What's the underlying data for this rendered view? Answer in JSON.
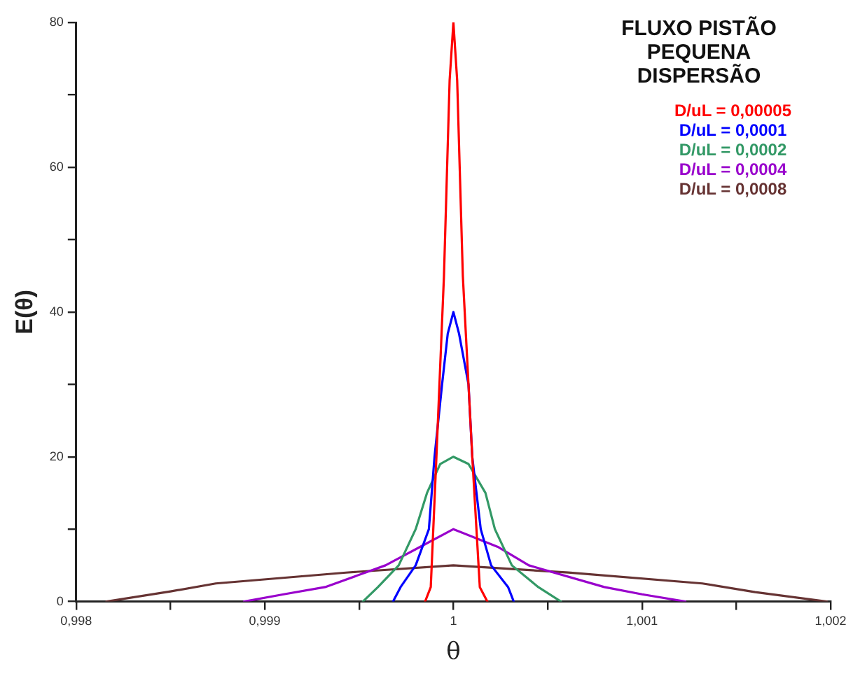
{
  "chart_data": {
    "type": "line",
    "title": "FLUXO PISTÃO PEQUENA DISPERSÃO",
    "xlabel": "θ",
    "ylabel": "E(θ)",
    "legend": "top right",
    "marker": "none",
    "line_style": "solid",
    "xlim": [
      0.998,
      1.002
    ],
    "ylim": [
      0,
      80
    ],
    "xticks": [
      {
        "value": 0.998,
        "label": "0,998"
      },
      {
        "value": 0.9985,
        "label": null
      },
      {
        "value": 0.999,
        "label": "0,999"
      },
      {
        "value": 0.9995,
        "label": null
      },
      1,
      {
        "value": 1.0005,
        "label": null
      },
      {
        "value": 1.001,
        "label": "1,001"
      },
      {
        "value": 1.0015,
        "label": null
      },
      {
        "value": 1.002,
        "label": "1,002"
      }
    ],
    "yticks": [
      0,
      {
        "value": 10,
        "label": null
      },
      20,
      {
        "value": 30,
        "label": null
      },
      40,
      {
        "value": 50,
        "label": null
      },
      60,
      {
        "value": 70,
        "label": null
      },
      80
    ],
    "series": [
      {
        "name": "D/uL = 0,00005",
        "color": "#ff0000",
        "x": [
          0.99985,
          0.99988,
          0.99991,
          0.99995,
          0.99998,
          1,
          1.00002,
          1.00005,
          1.0001,
          1.00014,
          1.00018
        ],
        "values": [
          0,
          2,
          20,
          45,
          72,
          80,
          72,
          45,
          20,
          2,
          0
        ]
      },
      {
        "name": "D/uL = 0,0001",
        "color": "#0000ff",
        "x": [
          0.99968,
          0.99972,
          0.9998,
          0.99987,
          0.9999,
          0.99994,
          0.99997,
          1,
          1.00003,
          1.00008,
          1.0001,
          1.000145,
          1.0002,
          1.00029,
          1.00032
        ],
        "values": [
          0,
          2,
          5,
          10,
          20,
          30,
          37,
          40,
          37,
          30,
          20,
          10,
          5,
          2,
          0
        ]
      },
      {
        "name": "D/uL = 0,0002",
        "color": "#339966",
        "x": [
          0.99952,
          0.9996,
          0.99971,
          0.9998,
          0.99986,
          0.99993,
          1,
          1.00008,
          1.00017,
          1.00022,
          1.00031,
          1.00045,
          1.00057
        ],
        "values": [
          0,
          2,
          5,
          10,
          15,
          19,
          20,
          19,
          15,
          10,
          5,
          2,
          0
        ]
      },
      {
        "name": "D/uL = 0,0004",
        "color": "#9900cc",
        "x": [
          0.99889,
          0.9991,
          0.99932,
          0.99964,
          0.99982,
          1,
          1.00024,
          1.0004,
          1.0008,
          1.001,
          1.00123
        ],
        "values": [
          0,
          1,
          2,
          5,
          7.5,
          10,
          7.5,
          5,
          2,
          1,
          0
        ]
      },
      {
        "name": "D/uL = 0,0008",
        "color": "#663333",
        "x": [
          0.99816,
          0.9985,
          0.99874,
          0.99943,
          1,
          1.00061,
          1.00132,
          1.0016,
          1.00198
        ],
        "values": [
          0,
          1.4,
          2.5,
          4,
          5,
          4,
          2.5,
          1.3,
          0
        ]
      }
    ]
  }
}
